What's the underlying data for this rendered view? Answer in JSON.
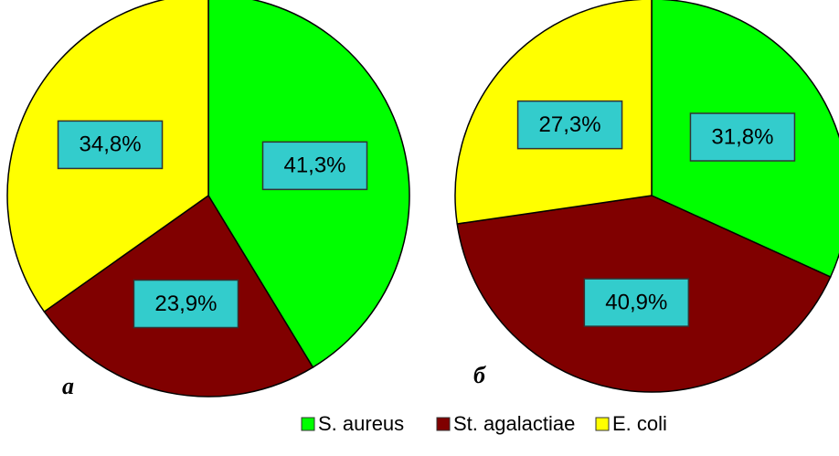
{
  "chart_data": [
    {
      "type": "pie",
      "label": "а",
      "categories": [
        "S. aureus",
        "St. agalactiae",
        "E. coli"
      ],
      "values": [
        41.3,
        23.9,
        34.8
      ],
      "value_labels": [
        "41,3%",
        "23,9%",
        "34,8%"
      ],
      "colors": [
        "#00ff00",
        "#800000",
        "#ffff00"
      ]
    },
    {
      "type": "pie",
      "label": "б",
      "categories": [
        "S. aureus",
        "St. agalactiae",
        "E. coli"
      ],
      "values": [
        31.8,
        40.9,
        27.3
      ],
      "value_labels": [
        "31,8%",
        "40,9%",
        "27,3%"
      ],
      "colors": [
        "#00ff00",
        "#800000",
        "#ffff00"
      ]
    }
  ]
}
